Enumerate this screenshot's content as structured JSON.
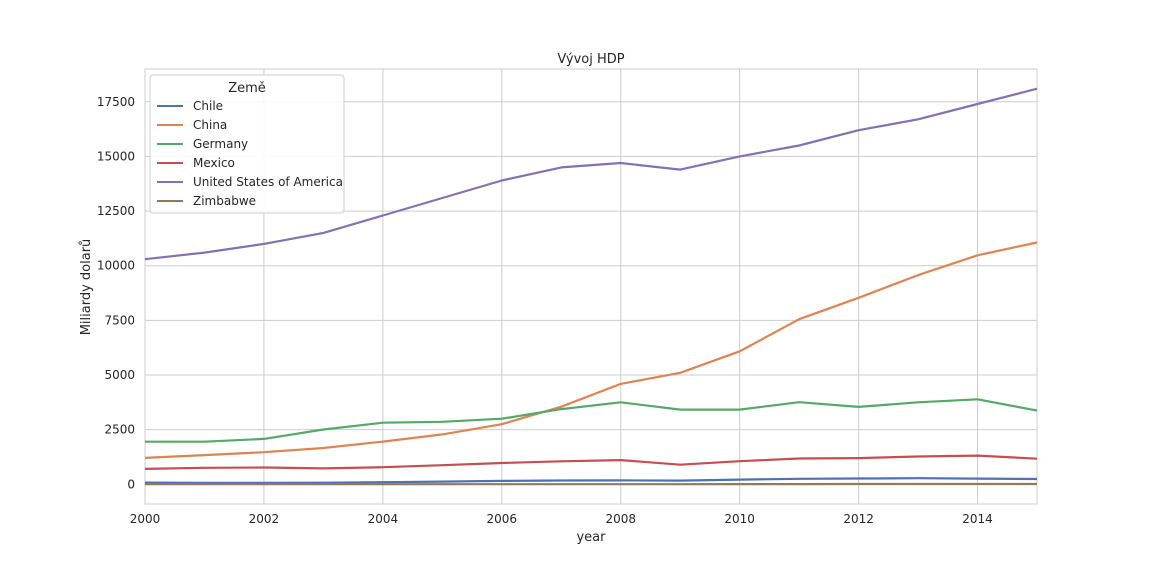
{
  "chart_data": {
    "type": "line",
    "title": "Vývoj HDP",
    "xlabel": "year",
    "ylabel": "Miliardy dolarů",
    "xlim": [
      2000,
      2015
    ],
    "ylim": [
      -900,
      19000
    ],
    "x_ticks": [
      2000,
      2002,
      2004,
      2006,
      2008,
      2010,
      2012,
      2014
    ],
    "y_ticks": [
      0,
      2500,
      5000,
      7500,
      10000,
      12500,
      15000,
      17500
    ],
    "grid": true,
    "legend": {
      "title": "Země",
      "position": "top-left"
    },
    "x": [
      2000,
      2001,
      2002,
      2003,
      2004,
      2005,
      2006,
      2007,
      2008,
      2009,
      2010,
      2011,
      2012,
      2013,
      2014,
      2015
    ],
    "series": [
      {
        "name": "Chile",
        "color": "#4c72b0",
        "values": [
          78,
          71,
          70,
          76,
          99,
          123,
          155,
          173,
          180,
          172,
          218,
          252,
          267,
          278,
          261,
          243
        ]
      },
      {
        "name": "China",
        "color": "#dd8452",
        "values": [
          1211,
          1339,
          1471,
          1660,
          1955,
          2286,
          2752,
          3550,
          4594,
          5102,
          6087,
          7552,
          8532,
          9570,
          10476,
          11064
        ]
      },
      {
        "name": "Germany",
        "color": "#55a868",
        "values": [
          1950,
          1950,
          2079,
          2506,
          2819,
          2861,
          3002,
          3440,
          3752,
          3418,
          3417,
          3758,
          3544,
          3753,
          3890,
          3375
        ]
      },
      {
        "name": "Mexico",
        "color": "#c44e52",
        "values": [
          708,
          756,
          772,
          729,
          782,
          877,
          975,
          1053,
          1110,
          900,
          1058,
          1180,
          1201,
          1274,
          1315,
          1172
        ]
      },
      {
        "name": "United States of America",
        "color": "#8172b3",
        "values": [
          10300,
          10600,
          11000,
          11500,
          12300,
          13100,
          13900,
          14500,
          14700,
          14400,
          15000,
          15500,
          16200,
          16700,
          17400,
          18100
        ]
      },
      {
        "name": "Zimbabwe",
        "color": "#937860",
        "values": [
          7,
          7,
          6,
          6,
          6,
          6,
          5,
          5,
          4,
          8,
          10,
          12,
          14,
          15,
          15,
          16
        ]
      }
    ]
  }
}
